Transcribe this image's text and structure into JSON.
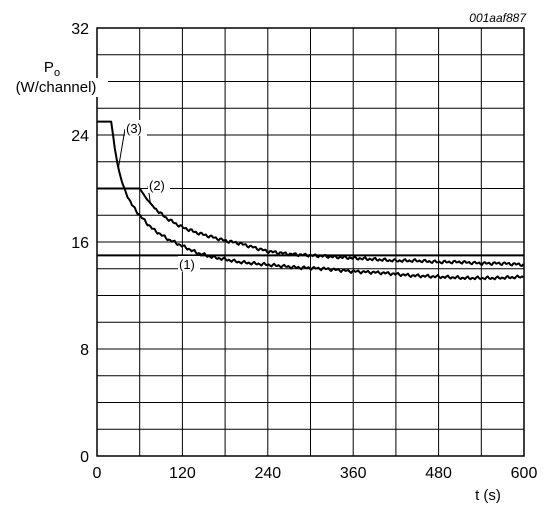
{
  "figure_ref": "001aaf887",
  "chart_data": {
    "type": "line",
    "title": "",
    "xlabel": "t (s)",
    "ylabel_symbol": "P",
    "ylabel_subscript": "o",
    "ylabel_unit": "(W/channel)",
    "xlim": [
      0,
      600
    ],
    "ylim": [
      0,
      32
    ],
    "x_ticks": [
      0,
      120,
      240,
      360,
      480,
      600
    ],
    "y_ticks": [
      0,
      8,
      16,
      24,
      32
    ],
    "grid": true,
    "series": [
      {
        "name": "(1)",
        "x": [
          0,
          600
        ],
        "y": [
          15.0,
          15.0
        ]
      },
      {
        "name": "(2)",
        "x": [
          0,
          60,
          70,
          80,
          90,
          100,
          120,
          140,
          160,
          180,
          200,
          220,
          240,
          270,
          300,
          330,
          360,
          390,
          420,
          450,
          480,
          510,
          540,
          570,
          600
        ],
        "y": [
          20.0,
          20.0,
          19.2,
          18.6,
          18.1,
          17.7,
          17.1,
          16.7,
          16.4,
          16.1,
          15.9,
          15.6,
          15.3,
          15.1,
          15.0,
          14.9,
          14.8,
          14.7,
          14.6,
          14.6,
          14.5,
          14.5,
          14.4,
          14.4,
          14.3
        ]
      },
      {
        "name": "(3)",
        "x": [
          0,
          20,
          25,
          30,
          35,
          40,
          45,
          50,
          60,
          70,
          80,
          100,
          120,
          140,
          160,
          180,
          200,
          240,
          280,
          320,
          360,
          400,
          440,
          480,
          520,
          560,
          600
        ],
        "y": [
          25.0,
          25.0,
          23.0,
          21.5,
          20.5,
          19.8,
          19.2,
          18.7,
          18.0,
          17.4,
          16.9,
          16.2,
          15.7,
          15.2,
          14.9,
          14.7,
          14.5,
          14.3,
          14.1,
          14.0,
          13.8,
          13.7,
          13.5,
          13.4,
          13.3,
          13.3,
          13.4
        ]
      }
    ]
  }
}
